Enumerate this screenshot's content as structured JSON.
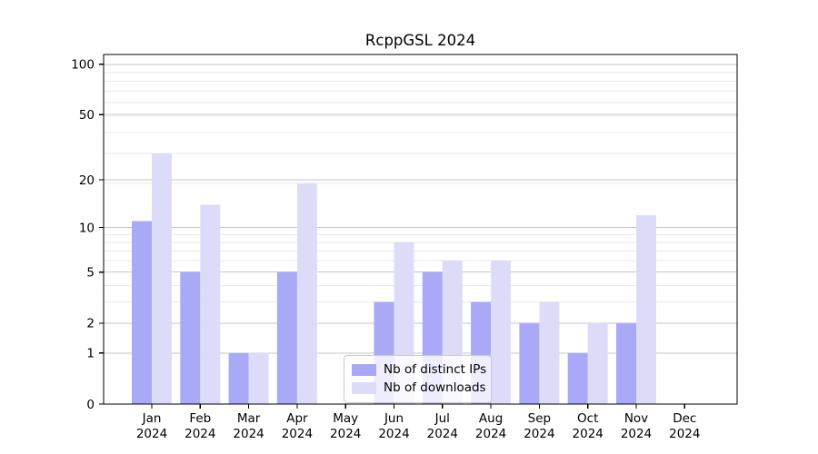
{
  "chart_data": {
    "type": "bar",
    "title": "RcppGSL 2024",
    "categories": [
      "Jan",
      "Feb",
      "Mar",
      "Apr",
      "May",
      "Jun",
      "Jul",
      "Aug",
      "Sep",
      "Oct",
      "Nov",
      "Dec"
    ],
    "category_year": "2024",
    "series": [
      {
        "name": "Nb of distinct IPs",
        "color": "#a9a9f7",
        "values": [
          11,
          5,
          1,
          5,
          0,
          3,
          5,
          3,
          2,
          1,
          2,
          0
        ]
      },
      {
        "name": "Nb of downloads",
        "color": "#dcdcf8",
        "values": [
          29,
          14,
          1,
          19,
          0,
          8,
          6,
          6,
          3,
          2,
          12,
          0
        ]
      }
    ],
    "xlabel": "",
    "ylabel": "",
    "yscale": "log1p",
    "yticks": [
      0,
      1,
      2,
      5,
      10,
      20,
      50,
      100
    ],
    "minor_yticks": [
      3,
      4,
      6,
      7,
      8,
      9,
      19,
      29,
      39,
      49,
      59,
      69,
      79,
      89
    ],
    "ylim": [
      0,
      114
    ],
    "grid": true,
    "legend_position": "lower center",
    "colors": {
      "axis": "#000000",
      "grid_major": "#c6c6c6",
      "grid_minor": "#e9e9e9",
      "background": "#ffffff"
    }
  }
}
